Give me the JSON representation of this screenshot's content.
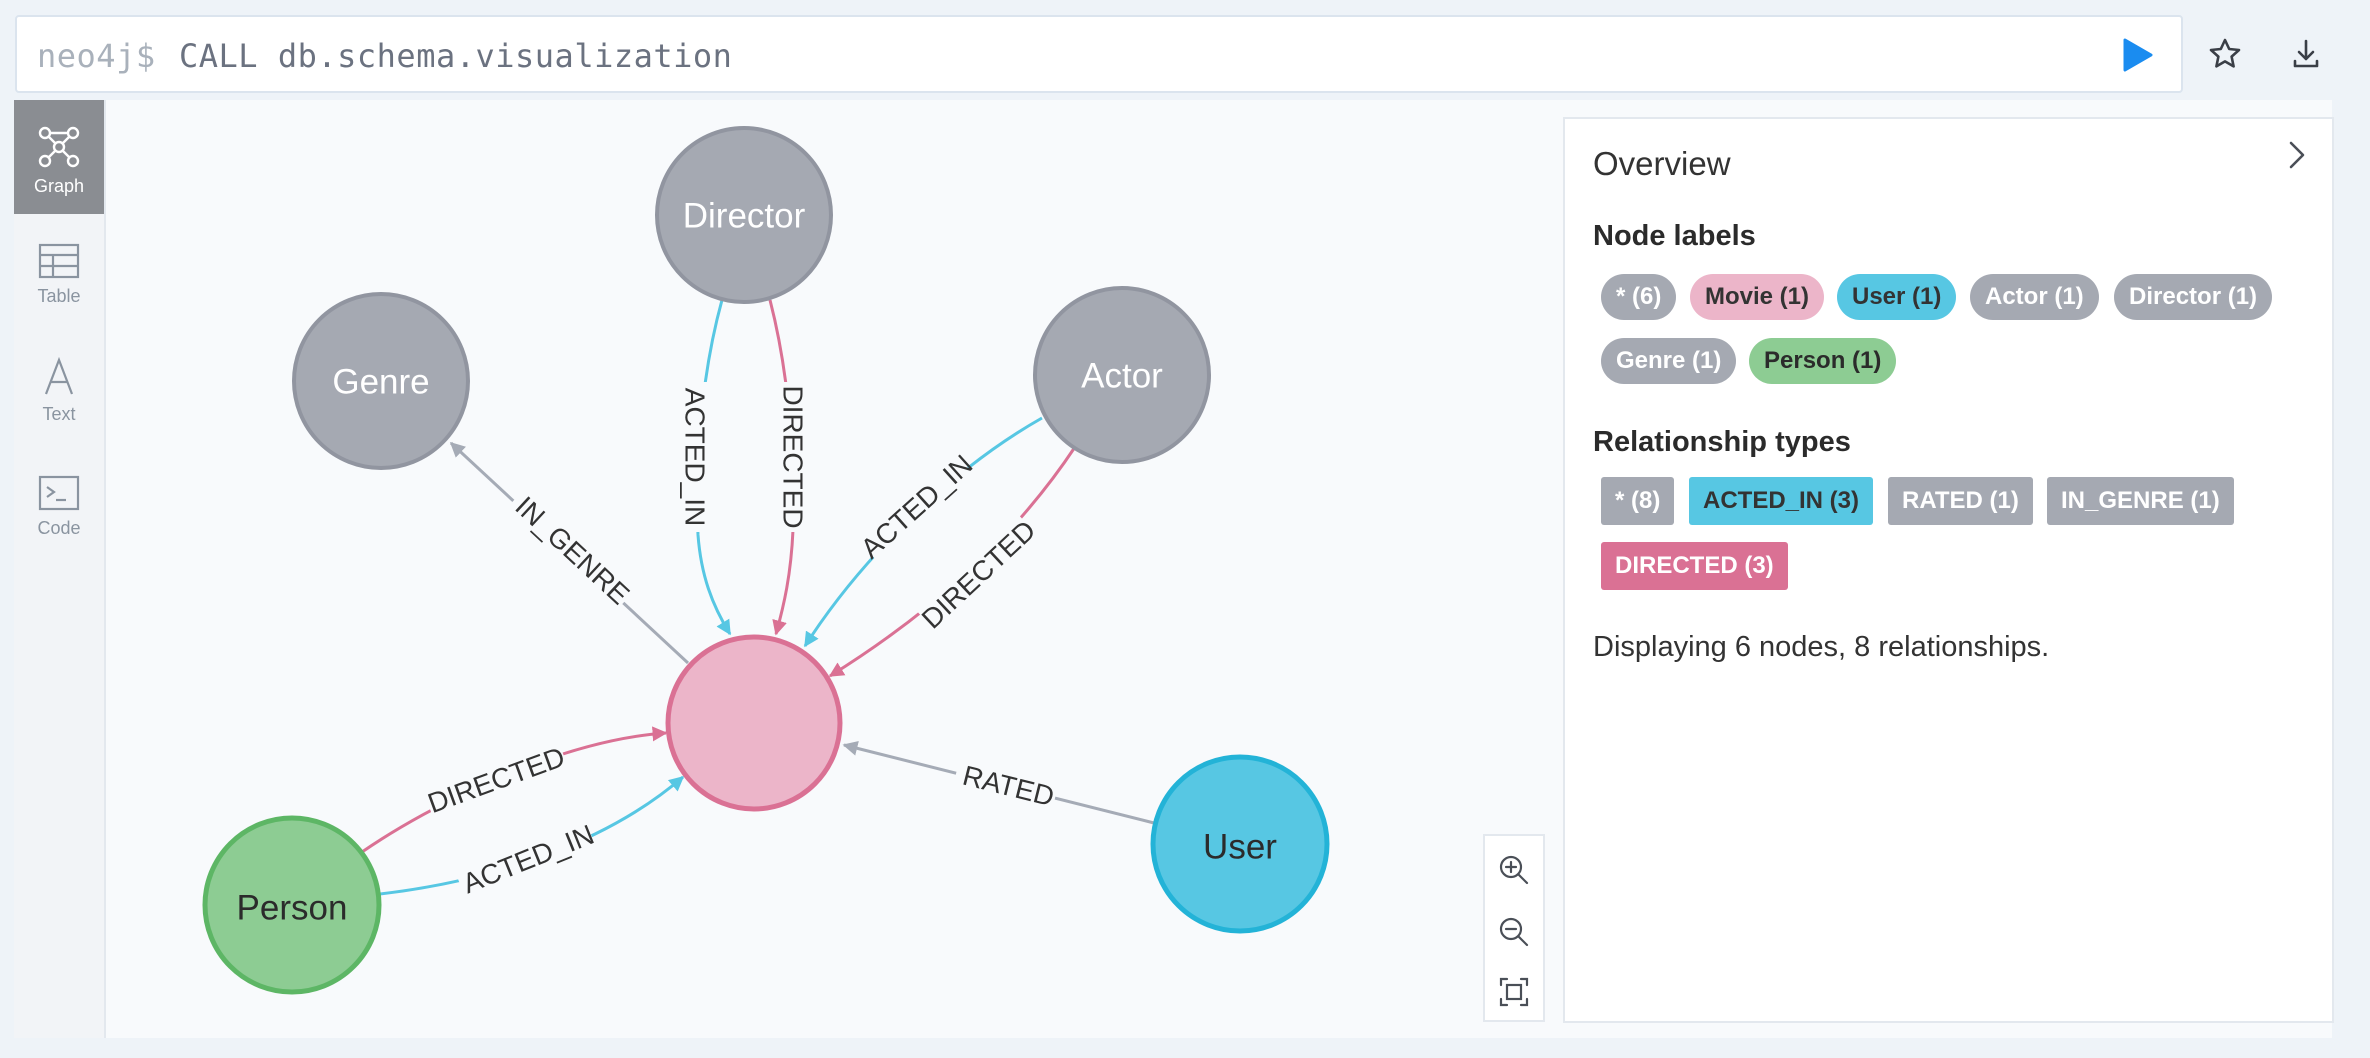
{
  "query": {
    "prompt": "neo4j$",
    "text": "CALL db.schema.visualization"
  },
  "toolbar": {
    "run": "run-icon",
    "favorite": "star-icon",
    "download": "download-icon"
  },
  "sidebar": {
    "items": [
      {
        "label": "Graph",
        "icon": "graph-icon",
        "active": true
      },
      {
        "label": "Table",
        "icon": "table-icon",
        "active": false
      },
      {
        "label": "Text",
        "icon": "text-icon",
        "active": false
      },
      {
        "label": "Code",
        "icon": "code-icon",
        "active": false
      }
    ]
  },
  "graph": {
    "nodes": {
      "director": "Director",
      "genre": "Genre",
      "actor": "Actor",
      "movie": "",
      "person": "Person",
      "user": "User"
    },
    "relationships": {
      "director_acted_in": "ACTED_IN",
      "director_directed": "DIRECTED",
      "movie_in_genre": "IN_GENRE",
      "actor_acted_in": "ACTED_IN",
      "actor_directed": "DIRECTED",
      "person_directed": "DIRECTED",
      "person_acted_in": "ACTED_IN",
      "user_rated": "RATED"
    },
    "colors": {
      "gray": "#a5a9b2",
      "gray_border": "#9195a0",
      "movie": "#ecb5c9",
      "movie_border": "#da7194",
      "person": "#8dcc93",
      "person_border": "#5db665",
      "user": "#57c7e3",
      "user_border": "#23b3d7",
      "edge_pink": "#da7194",
      "edge_blue": "#57c7e3",
      "edge_gray": "#a5abb6"
    }
  },
  "overview": {
    "title": "Overview",
    "node_labels_title": "Node labels",
    "node_labels": [
      {
        "text": "* (6)",
        "color": "#a5a9b2"
      },
      {
        "text": "Movie (1)",
        "color": "#ecb5c9"
      },
      {
        "text": "User (1)",
        "color": "#57c7e3"
      },
      {
        "text": "Actor (1)",
        "color": "#a5a9b2"
      },
      {
        "text": "Director (1)",
        "color": "#a5a9b2"
      },
      {
        "text": "Genre (1)",
        "color": "#a5a9b2"
      },
      {
        "text": "Person (1)",
        "color": "#8dcc93"
      }
    ],
    "relationship_types_title": "Relationship types",
    "relationship_types": [
      {
        "text": "* (8)",
        "color": "#a5a9b2"
      },
      {
        "text": "ACTED_IN (3)",
        "color": "#57c7e3"
      },
      {
        "text": "RATED (1)",
        "color": "#a5a9b2"
      },
      {
        "text": "IN_GENRE (1)",
        "color": "#a5a9b2"
      },
      {
        "text": "DIRECTED (3)",
        "color": "#da7194"
      }
    ],
    "summary": "Displaying 6 nodes, 8 relationships."
  },
  "zoom": {
    "zoom_in": "zoom-in-icon",
    "zoom_out": "zoom-out-icon",
    "fit": "fit-icon"
  }
}
